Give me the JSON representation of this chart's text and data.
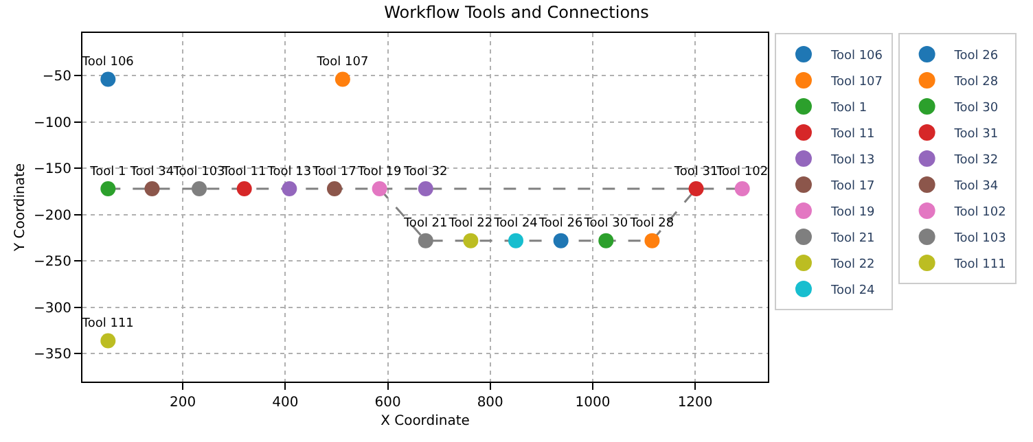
{
  "chart_data": {
    "type": "scatter",
    "title": "Workflow Tools and Connections",
    "xlabel": "X Coordinate",
    "ylabel": "Y Coordinate",
    "xlim": [
      4,
      1342
    ],
    "xticks": [
      200,
      400,
      600,
      800,
      1000,
      1200
    ],
    "ylim": [
      -380,
      -4
    ],
    "yticks": [
      -350,
      -300,
      -250,
      -200,
      -150,
      -100,
      -50
    ],
    "grid": true,
    "legend": "right",
    "marker": "circle",
    "series": [
      {
        "type": "line",
        "color": "#808080",
        "line_style": "dashed",
        "marker": "none",
        "x": [
          54,
          140,
          232,
          320,
          408,
          496,
          584,
          674,
          1202,
          1292
        ],
        "values": [
          -172,
          -172,
          -172,
          -172,
          -172,
          -172,
          -172,
          -172,
          -172,
          -172
        ]
      },
      {
        "type": "line",
        "color": "#808080",
        "line_style": "dashed",
        "marker": "none",
        "x": [
          584,
          674,
          762,
          850,
          938,
          1026,
          1116,
          1202
        ],
        "values": [
          -172,
          -228,
          -228,
          -228,
          -228,
          -228,
          -228,
          -172
        ]
      },
      {
        "name": "Tool 106",
        "color": "#1f77b4",
        "x": [
          54
        ],
        "values": [
          -54
        ]
      },
      {
        "name": "Tool 107",
        "color": "#ff7f0e",
        "x": [
          512
        ],
        "values": [
          -54
        ]
      },
      {
        "name": "Tool 1",
        "color": "#2ca02c",
        "x": [
          54
        ],
        "values": [
          -172
        ]
      },
      {
        "name": "Tool 11",
        "color": "#d62728",
        "x": [
          320
        ],
        "values": [
          -172
        ]
      },
      {
        "name": "Tool 13",
        "color": "#9467bd",
        "x": [
          408
        ],
        "values": [
          -172
        ]
      },
      {
        "name": "Tool 17",
        "color": "#8c564b",
        "x": [
          496
        ],
        "values": [
          -172
        ]
      },
      {
        "name": "Tool 19",
        "color": "#e377c2",
        "x": [
          584
        ],
        "values": [
          -172
        ]
      },
      {
        "name": "Tool 21",
        "color": "#7f7f7f",
        "x": [
          674
        ],
        "values": [
          -228
        ]
      },
      {
        "name": "Tool 22",
        "color": "#bcbd22",
        "x": [
          762
        ],
        "values": [
          -228
        ]
      },
      {
        "name": "Tool 24",
        "color": "#17becf",
        "x": [
          850
        ],
        "values": [
          -228
        ]
      },
      {
        "name": "Tool 26",
        "color": "#1f77b4",
        "x": [
          938
        ],
        "values": [
          -228
        ]
      },
      {
        "name": "Tool 28",
        "color": "#ff7f0e",
        "x": [
          1116
        ],
        "values": [
          -228
        ]
      },
      {
        "name": "Tool 30",
        "color": "#2ca02c",
        "x": [
          1026
        ],
        "values": [
          -228
        ]
      },
      {
        "name": "Tool 31",
        "color": "#d62728",
        "x": [
          1202
        ],
        "values": [
          -172
        ]
      },
      {
        "name": "Tool 32",
        "color": "#9467bd",
        "x": [
          674
        ],
        "values": [
          -172
        ]
      },
      {
        "name": "Tool 34",
        "color": "#8c564b",
        "x": [
          140
        ],
        "values": [
          -172
        ]
      },
      {
        "name": "Tool 102",
        "color": "#e377c2",
        "x": [
          1292
        ],
        "values": [
          -172
        ]
      },
      {
        "name": "Tool 103",
        "color": "#7f7f7f",
        "x": [
          232
        ],
        "values": [
          -172
        ]
      },
      {
        "name": "Tool 111",
        "color": "#bcbd22",
        "x": [
          54
        ],
        "values": [
          -336
        ]
      }
    ]
  }
}
